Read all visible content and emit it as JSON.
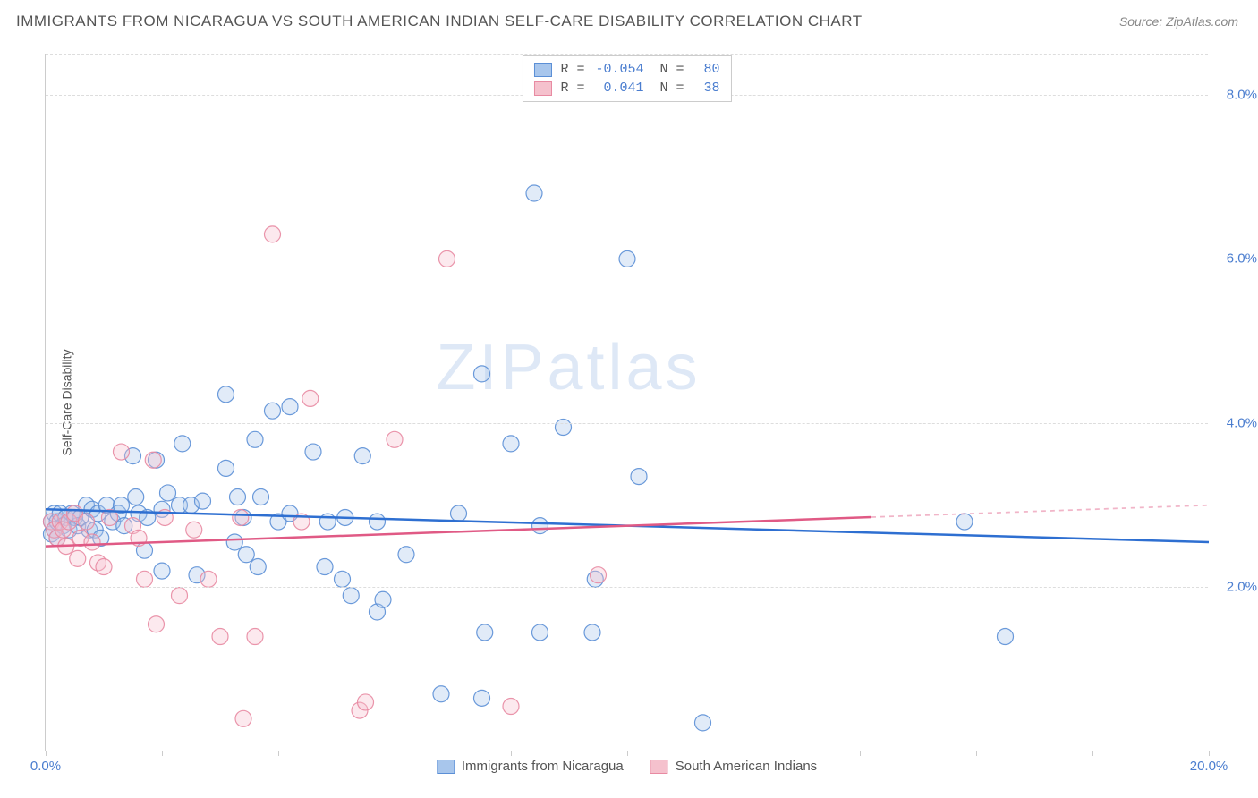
{
  "title": "IMMIGRANTS FROM NICARAGUA VS SOUTH AMERICAN INDIAN SELF-CARE DISABILITY CORRELATION CHART",
  "source": "Source: ZipAtlas.com",
  "watermark": "ZIPatlas",
  "y_axis_label": "Self-Care Disability",
  "chart": {
    "type": "scatter",
    "xlim": [
      0,
      20
    ],
    "ylim": [
      0,
      8.5
    ],
    "x_ticks": [
      0,
      2,
      4,
      6,
      8,
      10,
      12,
      14,
      16,
      18,
      20
    ],
    "x_tick_labels": {
      "0": "0.0%",
      "20": "20.0%"
    },
    "y_ticks": [
      2,
      4,
      6,
      8
    ],
    "y_tick_labels": {
      "2": "2.0%",
      "4": "4.0%",
      "6": "6.0%",
      "8": "8.0%"
    },
    "grid_color": "#dddddd",
    "axis_color": "#cccccc",
    "background_color": "#ffffff",
    "marker_radius": 9,
    "marker_fill_opacity": 0.35,
    "marker_stroke_opacity": 0.9,
    "series": [
      {
        "name": "Immigrants from Nicaragua",
        "color_fill": "#a8c6ec",
        "color_stroke": "#5b8fd6",
        "R": "-0.054",
        "N": "80",
        "trend": {
          "x1": 0,
          "y1": 2.95,
          "x2": 20,
          "y2": 2.55,
          "color": "#2e6fd1",
          "width": 2.5,
          "solid_until_x": 20
        },
        "points": [
          [
            0.1,
            2.8
          ],
          [
            0.1,
            2.65
          ],
          [
            0.15,
            2.9
          ],
          [
            0.15,
            2.7
          ],
          [
            0.2,
            2.8
          ],
          [
            0.2,
            2.6
          ],
          [
            0.25,
            2.9
          ],
          [
            0.3,
            2.75
          ],
          [
            0.35,
            2.85
          ],
          [
            0.4,
            2.7
          ],
          [
            0.45,
            2.9
          ],
          [
            0.5,
            2.85
          ],
          [
            0.55,
            2.75
          ],
          [
            0.6,
            2.85
          ],
          [
            0.7,
            3.0
          ],
          [
            0.75,
            2.7
          ],
          [
            0.8,
            2.95
          ],
          [
            0.85,
            2.7
          ],
          [
            0.9,
            2.9
          ],
          [
            0.95,
            2.6
          ],
          [
            1.05,
            3.0
          ],
          [
            1.15,
            2.8
          ],
          [
            1.25,
            2.9
          ],
          [
            1.3,
            3.0
          ],
          [
            1.35,
            2.75
          ],
          [
            1.5,
            3.6
          ],
          [
            1.55,
            3.1
          ],
          [
            1.6,
            2.9
          ],
          [
            1.7,
            2.45
          ],
          [
            1.75,
            2.85
          ],
          [
            1.9,
            3.55
          ],
          [
            2.0,
            2.95
          ],
          [
            2.0,
            2.2
          ],
          [
            2.1,
            3.15
          ],
          [
            2.3,
            3.0
          ],
          [
            2.35,
            3.75
          ],
          [
            2.5,
            3.0
          ],
          [
            2.6,
            2.15
          ],
          [
            2.7,
            3.05
          ],
          [
            3.1,
            3.45
          ],
          [
            3.1,
            4.35
          ],
          [
            3.25,
            2.55
          ],
          [
            3.3,
            3.1
          ],
          [
            3.4,
            2.85
          ],
          [
            3.45,
            2.4
          ],
          [
            3.6,
            3.8
          ],
          [
            3.65,
            2.25
          ],
          [
            3.7,
            3.1
          ],
          [
            3.9,
            4.15
          ],
          [
            4.0,
            2.8
          ],
          [
            4.2,
            2.9
          ],
          [
            4.2,
            4.2
          ],
          [
            4.6,
            3.65
          ],
          [
            4.8,
            2.25
          ],
          [
            4.85,
            2.8
          ],
          [
            5.1,
            2.1
          ],
          [
            5.15,
            2.85
          ],
          [
            5.25,
            1.9
          ],
          [
            5.45,
            3.6
          ],
          [
            5.7,
            2.8
          ],
          [
            5.7,
            1.7
          ],
          [
            5.8,
            1.85
          ],
          [
            6.2,
            2.4
          ],
          [
            6.8,
            0.7
          ],
          [
            7.1,
            2.9
          ],
          [
            7.5,
            0.65
          ],
          [
            7.5,
            4.6
          ],
          [
            7.55,
            1.45
          ],
          [
            8.0,
            3.75
          ],
          [
            8.4,
            6.8
          ],
          [
            8.5,
            1.45
          ],
          [
            8.5,
            2.75
          ],
          [
            8.9,
            3.95
          ],
          [
            9.4,
            1.45
          ],
          [
            9.45,
            2.1
          ],
          [
            10.0,
            6.0
          ],
          [
            10.2,
            3.35
          ],
          [
            11.3,
            0.35
          ],
          [
            15.8,
            2.8
          ],
          [
            16.5,
            1.4
          ]
        ]
      },
      {
        "name": "South American Indians",
        "color_fill": "#f5c1cd",
        "color_stroke": "#e88aa2",
        "R": "0.041",
        "N": "38",
        "trend": {
          "x1": 0,
          "y1": 2.5,
          "x2": 20,
          "y2": 3.0,
          "color": "#e05a85",
          "width": 2.5,
          "solid_until_x": 14.2
        },
        "points": [
          [
            0.1,
            2.8
          ],
          [
            0.15,
            2.7
          ],
          [
            0.2,
            2.6
          ],
          [
            0.25,
            2.8
          ],
          [
            0.3,
            2.7
          ],
          [
            0.35,
            2.5
          ],
          [
            0.4,
            2.8
          ],
          [
            0.5,
            2.9
          ],
          [
            0.55,
            2.35
          ],
          [
            0.6,
            2.6
          ],
          [
            0.7,
            2.8
          ],
          [
            0.8,
            2.55
          ],
          [
            0.9,
            2.3
          ],
          [
            1.0,
            2.25
          ],
          [
            1.1,
            2.85
          ],
          [
            1.3,
            3.65
          ],
          [
            1.5,
            2.75
          ],
          [
            1.6,
            2.6
          ],
          [
            1.7,
            2.1
          ],
          [
            1.85,
            3.55
          ],
          [
            1.9,
            1.55
          ],
          [
            2.05,
            2.85
          ],
          [
            2.3,
            1.9
          ],
          [
            2.55,
            2.7
          ],
          [
            2.8,
            2.1
          ],
          [
            3.0,
            1.4
          ],
          [
            3.35,
            2.85
          ],
          [
            3.4,
            0.4
          ],
          [
            3.6,
            1.4
          ],
          [
            3.9,
            6.3
          ],
          [
            4.4,
            2.8
          ],
          [
            4.55,
            4.3
          ],
          [
            5.4,
            0.5
          ],
          [
            5.5,
            0.6
          ],
          [
            6.0,
            3.8
          ],
          [
            6.9,
            6.0
          ],
          [
            8.0,
            0.55
          ],
          [
            9.5,
            2.15
          ]
        ]
      }
    ]
  },
  "legend_top": {
    "rows": [
      {
        "swatch_fill": "#a8c6ec",
        "swatch_stroke": "#5b8fd6",
        "r_label": "R =",
        "r_val": "-0.054",
        "n_label": "N =",
        "n_val": "80"
      },
      {
        "swatch_fill": "#f5c1cd",
        "swatch_stroke": "#e88aa2",
        "r_label": "R =",
        "r_val": "0.041",
        "n_label": "N =",
        "n_val": "38"
      }
    ]
  },
  "legend_bottom": {
    "items": [
      {
        "swatch_fill": "#a8c6ec",
        "swatch_stroke": "#5b8fd6",
        "label": "Immigrants from Nicaragua"
      },
      {
        "swatch_fill": "#f5c1cd",
        "swatch_stroke": "#e88aa2",
        "label": "South American Indians"
      }
    ]
  }
}
